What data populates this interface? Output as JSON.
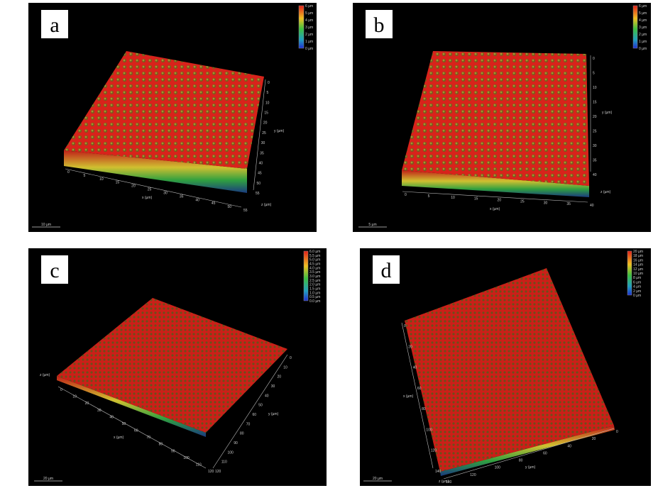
{
  "panels": [
    {
      "label": "a",
      "scale_bar": "10 µm",
      "colorbar": [
        "6 µm",
        "5 µm",
        "4 µm",
        "3 µm",
        "2 µm",
        "1 µm",
        "0 µm"
      ],
      "x_axis_title": "x (µm)",
      "x_ticks": [
        "0",
        "5",
        "10",
        "15",
        "20",
        "25",
        "30",
        "35",
        "40",
        "45",
        "50",
        "55"
      ],
      "y_axis_title": "y (µm)",
      "y_ticks": [
        "0",
        "5",
        "10",
        "15",
        "20",
        "25",
        "30",
        "35",
        "40",
        "45",
        "50",
        "55"
      ],
      "z_axis_title": "z (µm)"
    },
    {
      "label": "b",
      "scale_bar": "5 µm",
      "colorbar": [
        "6 µm",
        "5 µm",
        "4 µm",
        "3 µm",
        "2 µm",
        "1 µm",
        "0 µm"
      ],
      "x_axis_title": "x (µm)",
      "x_ticks": [
        "0",
        "5",
        "10",
        "15",
        "20",
        "25",
        "30",
        "35",
        "40"
      ],
      "y_axis_title": "y (µm)",
      "y_ticks": [
        "0",
        "5",
        "10",
        "15",
        "20",
        "25",
        "30",
        "35",
        "40"
      ],
      "z_axis_title": "z (µm)"
    },
    {
      "label": "c",
      "scale_bar": "20 µm",
      "colorbar": [
        "6.0 µm",
        "5.5 µm",
        "5.0 µm",
        "4.5 µm",
        "4.0 µm",
        "3.5 µm",
        "3.0 µm",
        "2.5 µm",
        "2.0 µm",
        "1.5 µm",
        "1.0 µm",
        "0.5 µm",
        "0.0 µm"
      ],
      "x_axis_title": "x (µm)",
      "x_ticks": [
        "0",
        "10",
        "20",
        "30",
        "40",
        "50",
        "60",
        "70",
        "80",
        "90",
        "100",
        "110",
        "120"
      ],
      "y_axis_title": "y (µm)",
      "y_ticks": [
        "0",
        "10",
        "20",
        "30",
        "40",
        "50",
        "60",
        "70",
        "80",
        "90",
        "100",
        "110",
        "120"
      ],
      "z_axis_title": "z (µm)"
    },
    {
      "label": "d",
      "scale_bar": "20 µm",
      "colorbar": [
        "20 µm",
        "18 µm",
        "16 µm",
        "14 µm",
        "12 µm",
        "10 µm",
        "8 µm",
        "6 µm",
        "4 µm",
        "2 µm",
        "0 µm"
      ],
      "x_axis_title": "x (µm)",
      "x_ticks": [
        "0",
        "20",
        "40",
        "60",
        "80",
        "100",
        "120",
        "140"
      ],
      "y_axis_title": "y (µm)",
      "y_ticks": [
        "140",
        "120",
        "100",
        "80",
        "60",
        "40",
        "20",
        "0"
      ],
      "z_axis_title": "z (µm)"
    }
  ]
}
